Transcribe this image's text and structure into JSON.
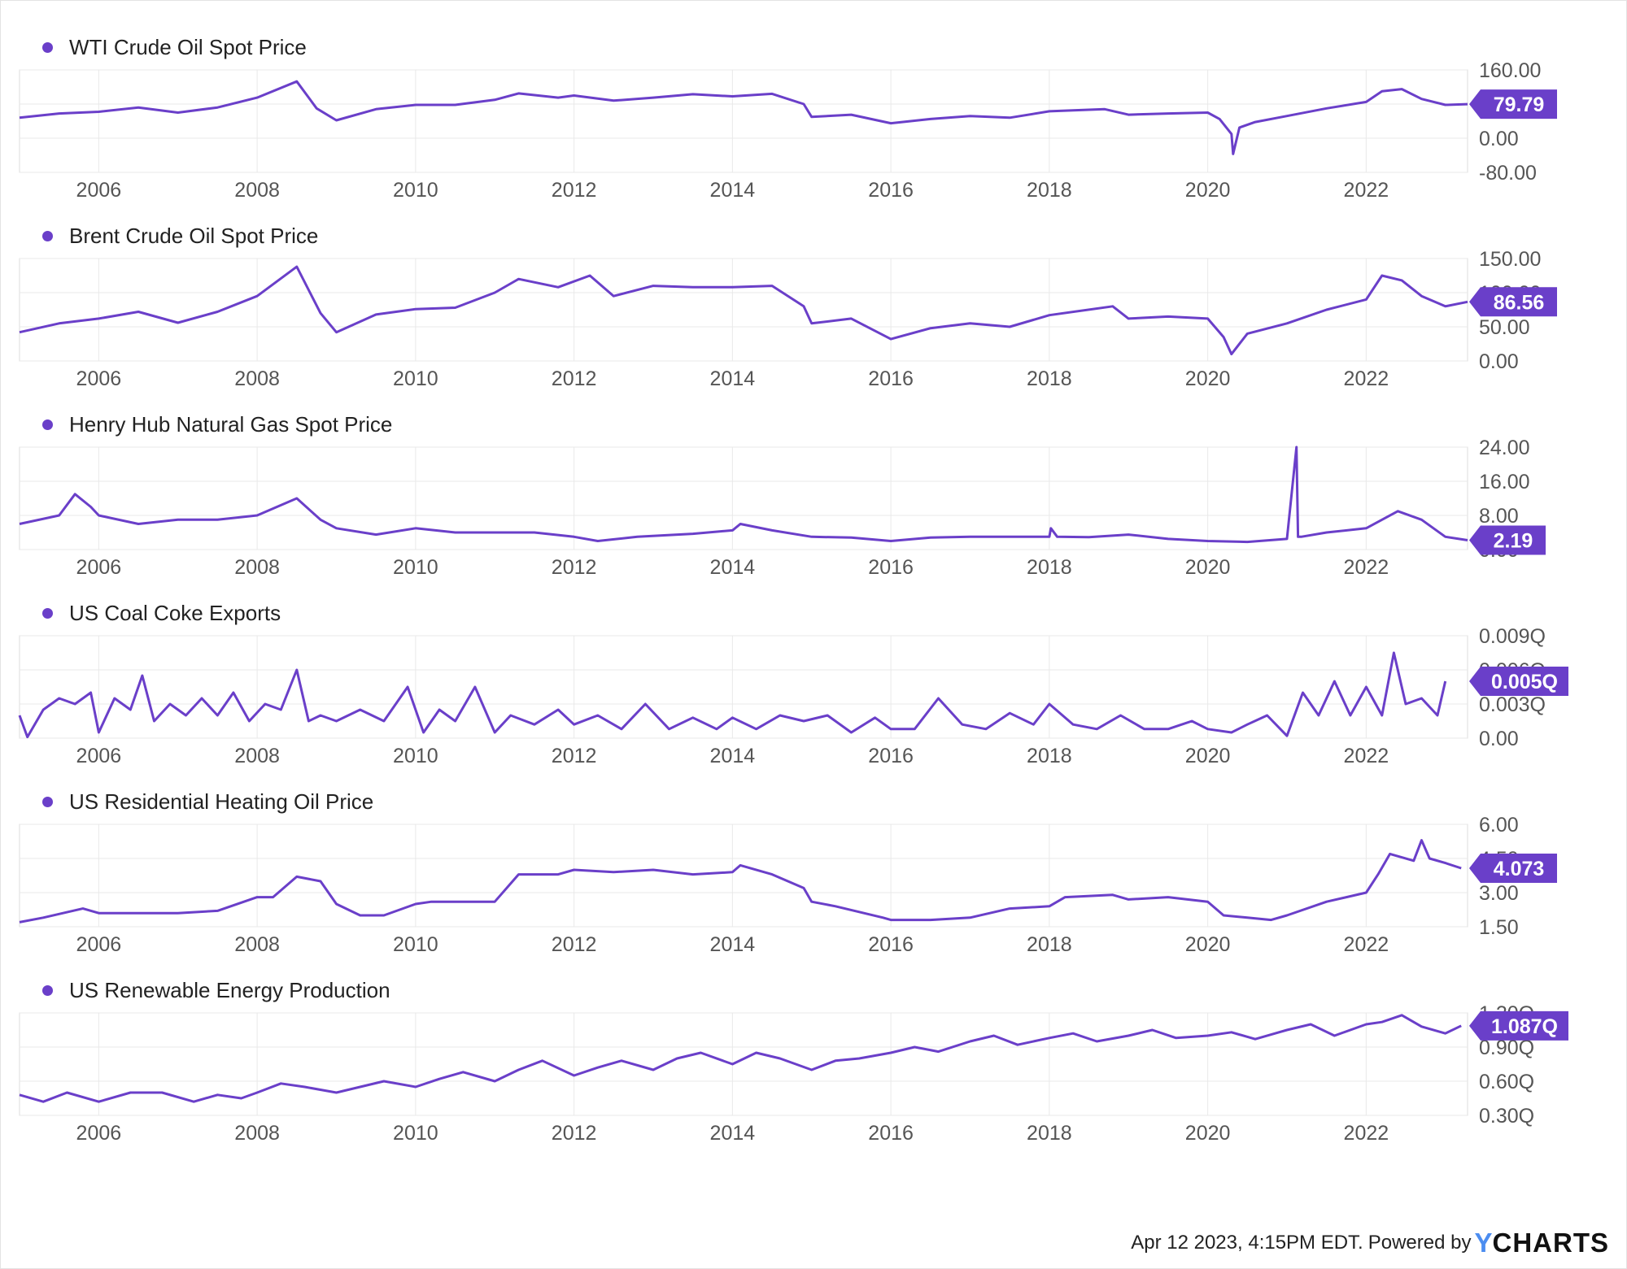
{
  "theme": {
    "line_color": "#6a3fc9",
    "grid_color": "#e9e9e9",
    "badge_color": "#6a3fc9"
  },
  "x_axis_labels": [
    "2006",
    "2008",
    "2010",
    "2012",
    "2014",
    "2016",
    "2018",
    "2020",
    "2022"
  ],
  "footer": {
    "timestamp": "Apr 12 2023, 4:15PM EDT.",
    "powered_by": "Powered by",
    "logo_y": "Y",
    "logo_rest": "CHARTS"
  },
  "chart_data": [
    {
      "type": "line",
      "title": "WTI Crude Oil Spot Price",
      "x_range": [
        2005.0,
        2023.28
      ],
      "ylim": [
        -80,
        160
      ],
      "y_ticks": [
        "160.00",
        "80.00",
        "0.00",
        "-80.00"
      ],
      "y_tick_values": [
        160,
        80,
        0,
        -80
      ],
      "last_value": "79.79",
      "series": [
        {
          "x": [
            2005.0,
            2005.5,
            2006.0,
            2006.5,
            2007.0,
            2007.5,
            2008.0,
            2008.5,
            2008.75,
            2009.0,
            2009.5,
            2010.0,
            2010.5,
            2011.0,
            2011.3,
            2011.8,
            2012.0,
            2012.5,
            2013.0,
            2013.5,
            2014.0,
            2014.5,
            2014.9,
            2015.0,
            2015.5,
            2016.0,
            2016.5,
            2017.0,
            2017.5,
            2018.0,
            2018.7,
            2019.0,
            2019.5,
            2020.0,
            2020.15,
            2020.3,
            2020.32,
            2020.4,
            2020.6,
            2021.0,
            2021.5,
            2022.0,
            2022.2,
            2022.45,
            2022.7,
            2023.0,
            2023.28
          ],
          "y": [
            48,
            58,
            62,
            72,
            60,
            72,
            95,
            133,
            70,
            42,
            68,
            78,
            78,
            90,
            105,
            95,
            100,
            88,
            95,
            103,
            98,
            104,
            80,
            50,
            55,
            35,
            45,
            52,
            48,
            63,
            68,
            55,
            58,
            60,
            45,
            10,
            -37,
            25,
            38,
            52,
            70,
            85,
            110,
            115,
            92,
            78,
            79.79
          ]
        }
      ]
    },
    {
      "type": "line",
      "title": "Brent Crude Oil Spot Price",
      "x_range": [
        2005.0,
        2023.28
      ],
      "ylim": [
        0,
        150
      ],
      "y_ticks": [
        "150.00",
        "100.00",
        "50.00",
        "0.00"
      ],
      "y_tick_values": [
        150,
        100,
        50,
        0
      ],
      "last_value": "86.56",
      "series": [
        {
          "x": [
            2005.0,
            2005.5,
            2006.0,
            2006.5,
            2007.0,
            2007.5,
            2008.0,
            2008.5,
            2008.8,
            2009.0,
            2009.5,
            2010.0,
            2010.5,
            2011.0,
            2011.3,
            2011.8,
            2012.2,
            2012.5,
            2013.0,
            2013.5,
            2014.0,
            2014.5,
            2014.9,
            2015.0,
            2015.5,
            2016.0,
            2016.5,
            2017.0,
            2017.5,
            2018.0,
            2018.8,
            2019.0,
            2019.5,
            2020.0,
            2020.2,
            2020.3,
            2020.5,
            2021.0,
            2021.5,
            2022.0,
            2022.2,
            2022.45,
            2022.7,
            2023.0,
            2023.28
          ],
          "y": [
            42,
            55,
            62,
            72,
            56,
            72,
            95,
            138,
            70,
            42,
            68,
            76,
            78,
            100,
            120,
            108,
            125,
            95,
            110,
            108,
            108,
            110,
            80,
            55,
            62,
            32,
            48,
            55,
            50,
            67,
            80,
            62,
            65,
            62,
            35,
            10,
            40,
            55,
            75,
            90,
            125,
            118,
            95,
            80,
            86.56
          ]
        }
      ]
    },
    {
      "type": "line",
      "title": "Henry Hub Natural Gas Spot Price",
      "x_range": [
        2005.0,
        2023.28
      ],
      "ylim": [
        0,
        24
      ],
      "y_ticks": [
        "24.00",
        "16.00",
        "8.00",
        "0.00"
      ],
      "y_tick_values": [
        24,
        16,
        8,
        0
      ],
      "last_value": "2.19",
      "series": [
        {
          "x": [
            2005.0,
            2005.5,
            2005.7,
            2005.9,
            2006.0,
            2006.5,
            2007.0,
            2007.5,
            2008.0,
            2008.5,
            2008.8,
            2009.0,
            2009.5,
            2010.0,
            2010.5,
            2011.0,
            2011.5,
            2012.0,
            2012.3,
            2012.8,
            2013.5,
            2014.0,
            2014.1,
            2014.5,
            2015.0,
            2015.5,
            2016.0,
            2016.5,
            2017.0,
            2017.5,
            2018.0,
            2018.02,
            2018.1,
            2018.5,
            2019.0,
            2019.5,
            2020.0,
            2020.5,
            2021.0,
            2021.12,
            2021.14,
            2021.18,
            2021.5,
            2022.0,
            2022.4,
            2022.7,
            2023.0,
            2023.28
          ],
          "y": [
            6,
            8,
            13,
            10,
            8,
            6,
            7,
            7,
            8,
            12,
            7,
            5,
            3.5,
            5,
            4,
            4,
            4,
            3,
            2,
            3,
            3.7,
            4.5,
            6,
            4.5,
            3,
            2.8,
            2,
            2.8,
            3,
            3,
            3,
            5,
            3,
            2.9,
            3.5,
            2.5,
            2,
            1.8,
            2.5,
            24,
            3,
            3,
            4,
            5,
            9,
            7,
            3,
            2.19
          ]
        }
      ]
    },
    {
      "type": "line",
      "title": "US Coal Coke Exports",
      "x_range": [
        2005.0,
        2023.28
      ],
      "ylim": [
        0,
        0.009
      ],
      "y_ticks": [
        "0.009Q",
        "0.006Q",
        "0.003Q",
        "0.00"
      ],
      "y_tick_values": [
        0.009,
        0.006,
        0.003,
        0
      ],
      "last_value": "0.005Q",
      "series": [
        {
          "x": [
            2005.0,
            2005.1,
            2005.3,
            2005.5,
            2005.7,
            2005.9,
            2006.0,
            2006.2,
            2006.4,
            2006.55,
            2006.7,
            2006.9,
            2007.1,
            2007.3,
            2007.5,
            2007.7,
            2007.9,
            2008.1,
            2008.3,
            2008.5,
            2008.65,
            2008.8,
            2009.0,
            2009.3,
            2009.6,
            2009.9,
            2010.1,
            2010.3,
            2010.5,
            2010.75,
            2011.0,
            2011.2,
            2011.5,
            2011.8,
            2012.0,
            2012.3,
            2012.6,
            2012.9,
            2013.2,
            2013.5,
            2013.8,
            2014.0,
            2014.3,
            2014.6,
            2014.9,
            2015.2,
            2015.5,
            2015.8,
            2016.0,
            2016.3,
            2016.6,
            2016.9,
            2017.2,
            2017.5,
            2017.8,
            2018.0,
            2018.3,
            2018.6,
            2018.9,
            2019.2,
            2019.5,
            2019.8,
            2020.0,
            2020.3,
            2020.5,
            2020.75,
            2021.0,
            2021.2,
            2021.4,
            2021.6,
            2021.8,
            2022.0,
            2022.2,
            2022.35,
            2022.5,
            2022.7,
            2022.9,
            2023.0
          ],
          "y": [
            0.002,
            0.0001,
            0.0025,
            0.0035,
            0.003,
            0.004,
            0.0005,
            0.0035,
            0.0025,
            0.0055,
            0.0015,
            0.003,
            0.002,
            0.0035,
            0.002,
            0.004,
            0.0015,
            0.003,
            0.0025,
            0.006,
            0.0015,
            0.002,
            0.0015,
            0.0025,
            0.0015,
            0.0045,
            0.0005,
            0.0025,
            0.0015,
            0.0045,
            0.0005,
            0.002,
            0.0012,
            0.0025,
            0.0012,
            0.002,
            0.0008,
            0.003,
            0.0008,
            0.0018,
            0.0008,
            0.0018,
            0.0008,
            0.002,
            0.0015,
            0.002,
            0.0005,
            0.0018,
            0.0008,
            0.0008,
            0.0035,
            0.0012,
            0.0008,
            0.0022,
            0.0012,
            0.003,
            0.0012,
            0.0008,
            0.002,
            0.0008,
            0.0008,
            0.0015,
            0.0008,
            0.0005,
            0.0012,
            0.002,
            0.0002,
            0.004,
            0.002,
            0.005,
            0.002,
            0.0045,
            0.002,
            0.0075,
            0.003,
            0.0035,
            0.002,
            0.005
          ]
        }
      ]
    },
    {
      "type": "line",
      "title": "US Residential Heating Oil Price",
      "x_range": [
        2005.0,
        2023.28
      ],
      "ylim": [
        1.5,
        6.0
      ],
      "y_ticks": [
        "6.00",
        "4.50",
        "3.00",
        "1.50"
      ],
      "y_tick_values": [
        6,
        4.5,
        3,
        1.5
      ],
      "last_value": "4.073",
      "series": [
        {
          "x": [
            2005.0,
            2005.3,
            2005.8,
            2006.0,
            2007.0,
            2007.5,
            2008.0,
            2008.2,
            2008.5,
            2008.8,
            2009.0,
            2009.3,
            2009.6,
            2010.0,
            2010.2,
            2010.5,
            2011.0,
            2011.3,
            2011.8,
            2012.0,
            2012.5,
            2013.0,
            2013.5,
            2014.0,
            2014.1,
            2014.5,
            2014.9,
            2015.0,
            2015.3,
            2015.9,
            2016.0,
            2016.5,
            2017.0,
            2017.5,
            2018.0,
            2018.2,
            2018.8,
            2019.0,
            2019.5,
            2020.0,
            2020.2,
            2020.5,
            2020.8,
            2021.0,
            2021.5,
            2022.0,
            2022.15,
            2022.3,
            2022.6,
            2022.7,
            2022.8,
            2023.0,
            2023.2
          ],
          "y": [
            1.7,
            1.9,
            2.3,
            2.1,
            2.1,
            2.2,
            2.8,
            2.8,
            3.7,
            3.5,
            2.5,
            2.0,
            2.0,
            2.5,
            2.6,
            2.6,
            2.6,
            3.8,
            3.8,
            4.0,
            3.9,
            4.0,
            3.8,
            3.9,
            4.2,
            3.8,
            3.2,
            2.6,
            2.4,
            1.9,
            1.8,
            1.8,
            1.9,
            2.3,
            2.4,
            2.8,
            2.9,
            2.7,
            2.8,
            2.6,
            2.0,
            1.9,
            1.8,
            2.0,
            2.6,
            3.0,
            3.8,
            4.7,
            4.4,
            5.3,
            4.5,
            4.3,
            4.073
          ]
        }
      ]
    },
    {
      "type": "line",
      "title": "US Renewable Energy Production",
      "x_range": [
        2005.0,
        2023.28
      ],
      "ylim": [
        0.3,
        1.2
      ],
      "y_ticks": [
        "1.20Q",
        "0.90Q",
        "0.60Q",
        "0.30Q"
      ],
      "y_tick_values": [
        1.2,
        0.9,
        0.6,
        0.3
      ],
      "last_value": "1.087Q",
      "series": [
        {
          "x": [
            2005.0,
            2005.3,
            2005.6,
            2006.0,
            2006.4,
            2006.8,
            2007.2,
            2007.5,
            2007.8,
            2008.0,
            2008.3,
            2008.6,
            2009.0,
            2009.3,
            2009.6,
            2010.0,
            2010.3,
            2010.6,
            2011.0,
            2011.3,
            2011.6,
            2012.0,
            2012.3,
            2012.6,
            2013.0,
            2013.3,
            2013.6,
            2014.0,
            2014.3,
            2014.6,
            2015.0,
            2015.3,
            2015.6,
            2016.0,
            2016.3,
            2016.6,
            2017.0,
            2017.3,
            2017.6,
            2018.0,
            2018.3,
            2018.6,
            2019.0,
            2019.3,
            2019.6,
            2020.0,
            2020.3,
            2020.6,
            2021.0,
            2021.3,
            2021.6,
            2022.0,
            2022.2,
            2022.45,
            2022.7,
            2023.0,
            2023.2
          ],
          "y": [
            0.48,
            0.42,
            0.5,
            0.42,
            0.5,
            0.5,
            0.42,
            0.48,
            0.45,
            0.5,
            0.58,
            0.55,
            0.5,
            0.55,
            0.6,
            0.55,
            0.62,
            0.68,
            0.6,
            0.7,
            0.78,
            0.65,
            0.72,
            0.78,
            0.7,
            0.8,
            0.85,
            0.75,
            0.85,
            0.8,
            0.7,
            0.78,
            0.8,
            0.85,
            0.9,
            0.86,
            0.95,
            1.0,
            0.92,
            0.98,
            1.02,
            0.95,
            1.0,
            1.05,
            0.98,
            1.0,
            1.03,
            0.97,
            1.05,
            1.1,
            1.0,
            1.1,
            1.12,
            1.18,
            1.08,
            1.02,
            1.087
          ]
        }
      ]
    }
  ]
}
